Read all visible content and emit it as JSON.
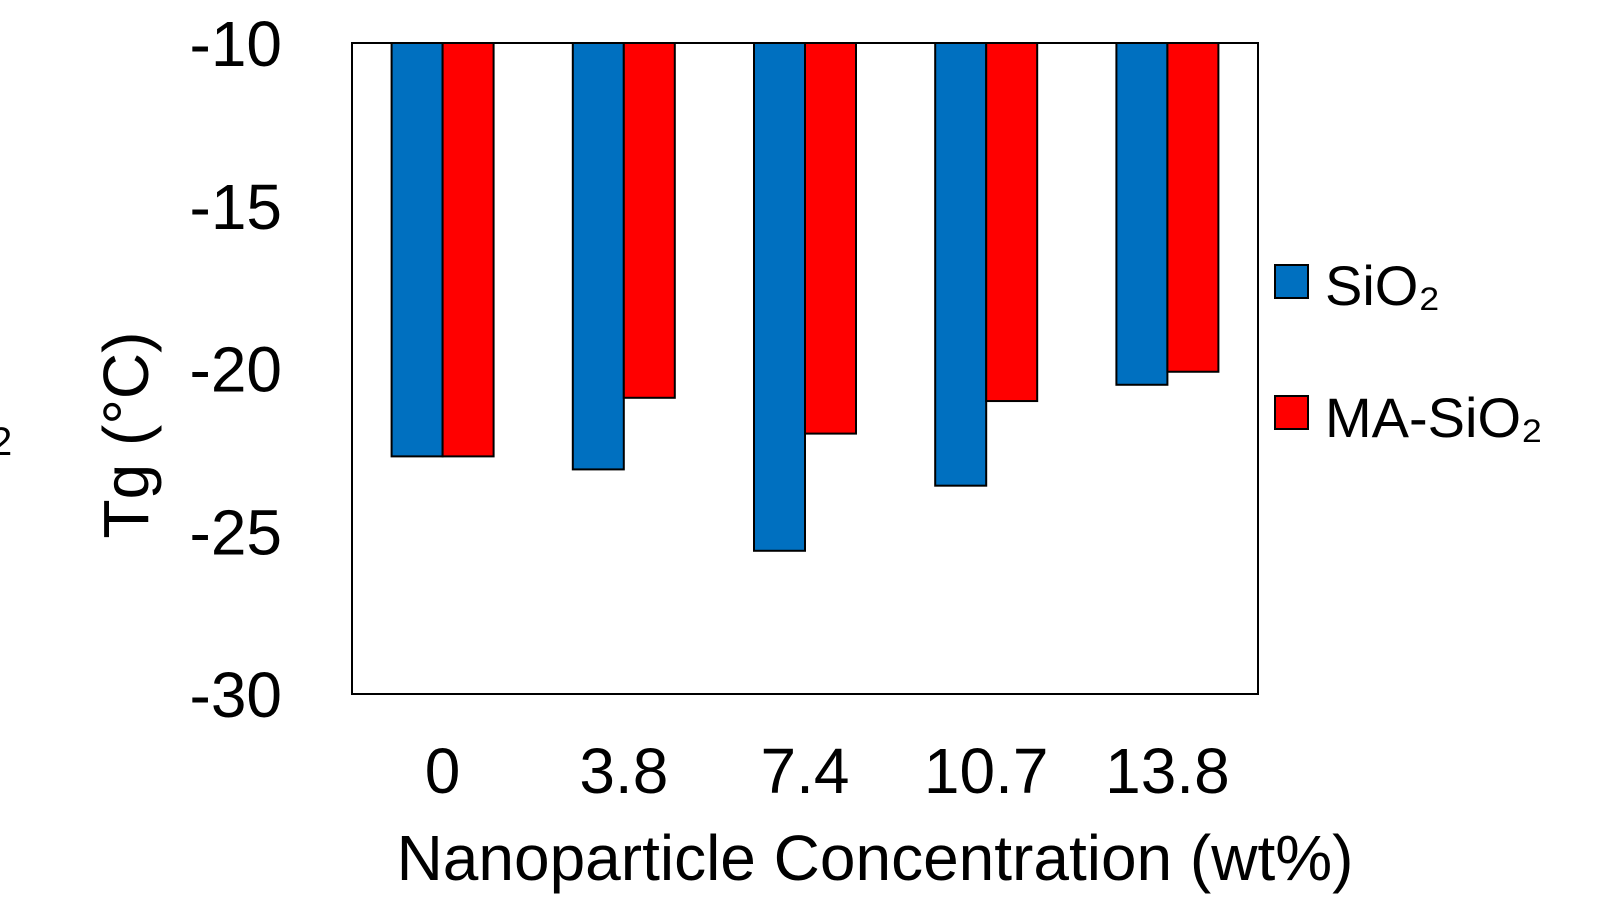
{
  "chart_data": {
    "type": "bar",
    "title": "",
    "xlabel": "Nanoparticle Concentration (wt%)",
    "ylabel": "Tg (°C)",
    "categories": [
      "0",
      "3.8",
      "7.4",
      "10.7",
      "13.8"
    ],
    "ylim": [
      -30,
      -10
    ],
    "yticks": [
      "-10",
      "-15",
      "-20",
      "-25",
      "-30"
    ],
    "bar_baseline": -10,
    "series": [
      {
        "name": "SiO₂",
        "color": "#0070C0",
        "values": [
          -22.7,
          -23.1,
          -25.6,
          -23.6,
          -20.5
        ]
      },
      {
        "name": "MA-SiO₂",
        "color": "#FF0000",
        "values": [
          -22.7,
          -20.9,
          -22.0,
          -21.0,
          -20.1
        ]
      }
    ],
    "legend_position": "right",
    "grid": false
  },
  "stray_fragment": "2"
}
